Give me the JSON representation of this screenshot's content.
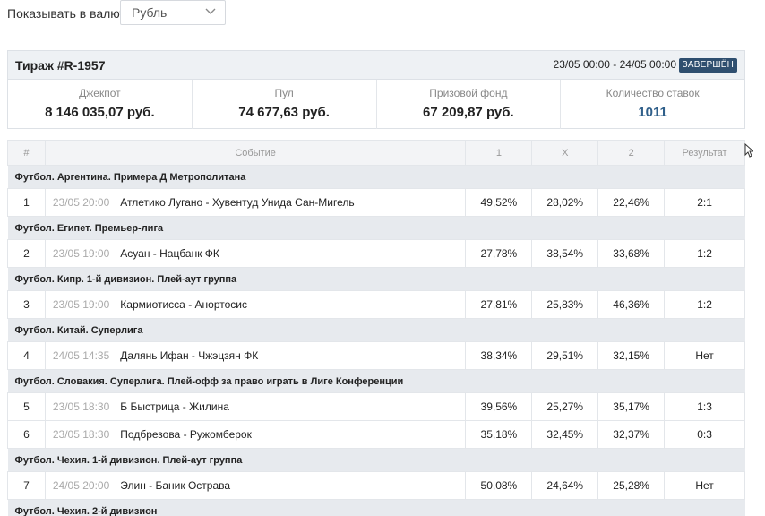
{
  "currency": {
    "label": "Показывать в валюте",
    "selected": "Рубль"
  },
  "draw": {
    "title": "Тираж #R-1957",
    "dates": "23/05 00:00 - 24/05 00:00",
    "status": "ЗАВЕРШЁН",
    "stats": [
      {
        "label": "Джекпот",
        "value": "8 146 035,07 руб."
      },
      {
        "label": "Пул",
        "value": "74 677,63 руб."
      },
      {
        "label": "Призовой фонд",
        "value": "67 209,87 руб."
      },
      {
        "label": "Количество ставок",
        "value": "1011"
      }
    ]
  },
  "table": {
    "headers": {
      "num": "#",
      "event": "Событие",
      "one": "1",
      "x": "X",
      "two": "2",
      "result": "Результат"
    },
    "groups": [
      {
        "title": "Футбол. Аргентина. Примера Д Метрополитана",
        "rows": [
          {
            "num": "1",
            "time": "23/05 20:00",
            "event": "Атлетико Лугано - Хувентуд Унида Сан-Мигель",
            "p1": "49,52%",
            "px": "28,02%",
            "p2": "22,46%",
            "result": "2:1"
          }
        ]
      },
      {
        "title": "Футбол. Египет. Премьер-лига",
        "rows": [
          {
            "num": "2",
            "time": "23/05 19:00",
            "event": "Асуан - Нацбанк ФК",
            "p1": "27,78%",
            "px": "38,54%",
            "p2": "33,68%",
            "result": "1:2"
          }
        ]
      },
      {
        "title": "Футбол. Кипр. 1-й дивизион. Плей-аут группа",
        "rows": [
          {
            "num": "3",
            "time": "23/05 19:00",
            "event": "Кармиотисса - Анортосис",
            "p1": "27,81%",
            "px": "25,83%",
            "p2": "46,36%",
            "result": "1:2"
          }
        ]
      },
      {
        "title": "Футбол. Китай. Суперлига",
        "rows": [
          {
            "num": "4",
            "time": "24/05 14:35",
            "event": "Далянь Ифан - Чжэцзян ФК",
            "p1": "38,34%",
            "px": "29,51%",
            "p2": "32,15%",
            "result": "Нет"
          }
        ]
      },
      {
        "title": "Футбол. Словакия. Суперлига. Плей-офф за право играть в Лиге Конференции",
        "rows": [
          {
            "num": "5",
            "time": "23/05 18:30",
            "event": "Б Быстрица - Жилина",
            "p1": "39,56%",
            "px": "25,27%",
            "p2": "35,17%",
            "result": "1:3"
          },
          {
            "num": "6",
            "time": "23/05 18:30",
            "event": "Подбрезова - Ружомберок",
            "p1": "35,18%",
            "px": "32,45%",
            "p2": "32,37%",
            "result": "0:3"
          }
        ]
      },
      {
        "title": "Футбол. Чехия. 1-й дивизион. Плей-аут группа",
        "rows": [
          {
            "num": "7",
            "time": "24/05 20:00",
            "event": "Элин - Баник Острава",
            "p1": "50,08%",
            "px": "24,64%",
            "p2": "25,28%",
            "result": "Нет"
          }
        ]
      },
      {
        "title": "Футбол. Чехия. 2-й дивизион",
        "rows": []
      }
    ]
  },
  "colors": {
    "status_badge": "#2f4f6f",
    "bet_count": "#2f5f8a",
    "group_bg": "#e7eaee"
  }
}
